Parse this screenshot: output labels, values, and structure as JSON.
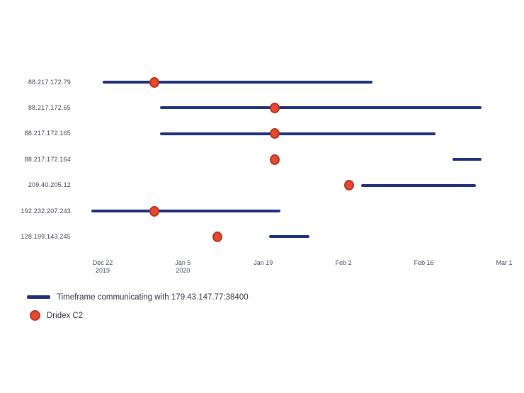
{
  "chart_data": {
    "type": "timeline",
    "title": "",
    "x_axis": {
      "origin": "2019-12-22",
      "ticks": [
        {
          "label": "Dec 22",
          "sublabel": "2019",
          "date": "2019-12-22"
        },
        {
          "label": "Jan 5",
          "sublabel": "2020",
          "date": "2020-01-05"
        },
        {
          "label": "Jan 19",
          "sublabel": "",
          "date": "2020-01-19"
        },
        {
          "label": "Feb 2",
          "sublabel": "",
          "date": "2020-02-02"
        },
        {
          "label": "Feb 16",
          "sublabel": "",
          "date": "2020-02-16"
        },
        {
          "label": "Mar 1",
          "sublabel": "",
          "date": "2020-03-01"
        }
      ]
    },
    "series": [
      {
        "ip": "88.217.172.79",
        "bar": {
          "start": "2019-12-22",
          "end": "2020-02-07"
        },
        "c2_marker": "2019-12-31"
      },
      {
        "ip": "88.217.172.65",
        "bar": {
          "start": "2020-01-01",
          "end": "2020-02-26"
        },
        "c2_marker": "2020-01-21"
      },
      {
        "ip": "88.217.172.165",
        "bar": {
          "start": "2020-01-01",
          "end": "2020-02-18"
        },
        "c2_marker": "2020-01-21"
      },
      {
        "ip": "88.217.172.164",
        "bar": {
          "start": "2020-02-21",
          "end": "2020-02-26"
        },
        "c2_marker": "2020-01-21"
      },
      {
        "ip": "209.40.205.12",
        "bar": {
          "start": "2020-02-05",
          "end": "2020-02-25"
        },
        "c2_marker": "2020-02-03"
      },
      {
        "ip": "192.232.207.243",
        "bar": {
          "start": "2019-12-20",
          "end": "2020-01-22"
        },
        "c2_marker": "2019-12-31"
      },
      {
        "ip": "128.199.143.245",
        "bar": {
          "start": "2020-01-20",
          "end": "2020-01-27"
        },
        "c2_marker": "2020-01-11"
      }
    ],
    "legend": [
      {
        "swatch": "line",
        "label": "Timeframe communicating with 179.43.147.77:38400"
      },
      {
        "swatch": "dot",
        "label": "Dridex C2"
      }
    ],
    "colors": {
      "bar": "#20307b",
      "marker_fill": "#e6492d",
      "marker_border": "#b23522",
      "row_label_text": "#3f4254",
      "tick_text": "#4a4d5e",
      "legend_text": "#30323f",
      "background": "#ffffff"
    },
    "layout_hints": {
      "grid": false,
      "legend_position": "bottom-left",
      "axis_lines": false
    }
  }
}
